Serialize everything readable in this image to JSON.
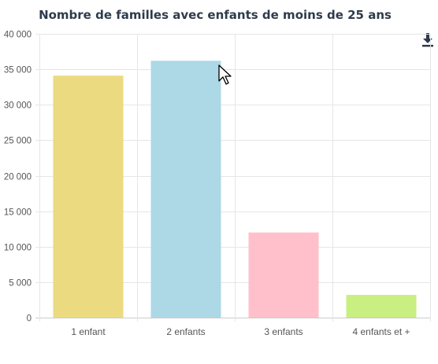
{
  "chart_data": {
    "type": "bar",
    "title": "Nombre de familles avec enfants de moins de 25 ans",
    "categories": [
      "1 enfant",
      "2 enfants",
      "3 enfants",
      "4 enfants et +"
    ],
    "values": [
      34100,
      36200,
      12000,
      3200
    ],
    "colors": [
      "#ebda80",
      "#add8e6",
      "#ffc0cb",
      "#c9ee82"
    ],
    "ylim": [
      0,
      40000
    ],
    "yticks": [
      0,
      5000,
      10000,
      15000,
      20000,
      25000,
      30000,
      35000,
      40000
    ],
    "ytick_labels": [
      "0",
      "5 000",
      "10 000",
      "15 000",
      "20 000",
      "25 000",
      "30 000",
      "35 000",
      "40 000"
    ],
    "grid": true,
    "xlabel": "",
    "ylabel": ""
  },
  "toolbar": {
    "download_icon": "download-icon"
  }
}
